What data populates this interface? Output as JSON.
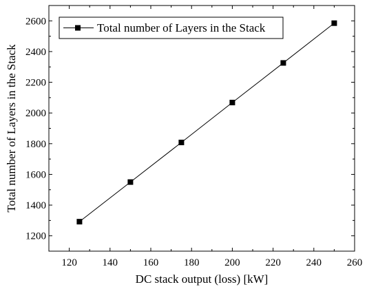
{
  "chart_data": {
    "type": "line",
    "title": "",
    "xlabel": "DC stack output (loss) [kW]",
    "ylabel": "Total number of Layers in the Stack",
    "xlim": [
      110,
      260
    ],
    "ylim": [
      1100,
      2700
    ],
    "xticks": [
      120,
      140,
      160,
      180,
      200,
      220,
      240,
      260
    ],
    "yticks": [
      1200,
      1400,
      1600,
      1800,
      2000,
      2200,
      2400,
      2600
    ],
    "grid": false,
    "legend_position": "top-left",
    "series": [
      {
        "name": "Total number of Layers in the Stack",
        "marker": "square",
        "color": "#000000",
        "x": [
          125,
          150,
          175,
          200,
          225,
          250
        ],
        "y": [
          1292,
          1550,
          1808,
          2068,
          2326,
          2585
        ]
      }
    ]
  }
}
